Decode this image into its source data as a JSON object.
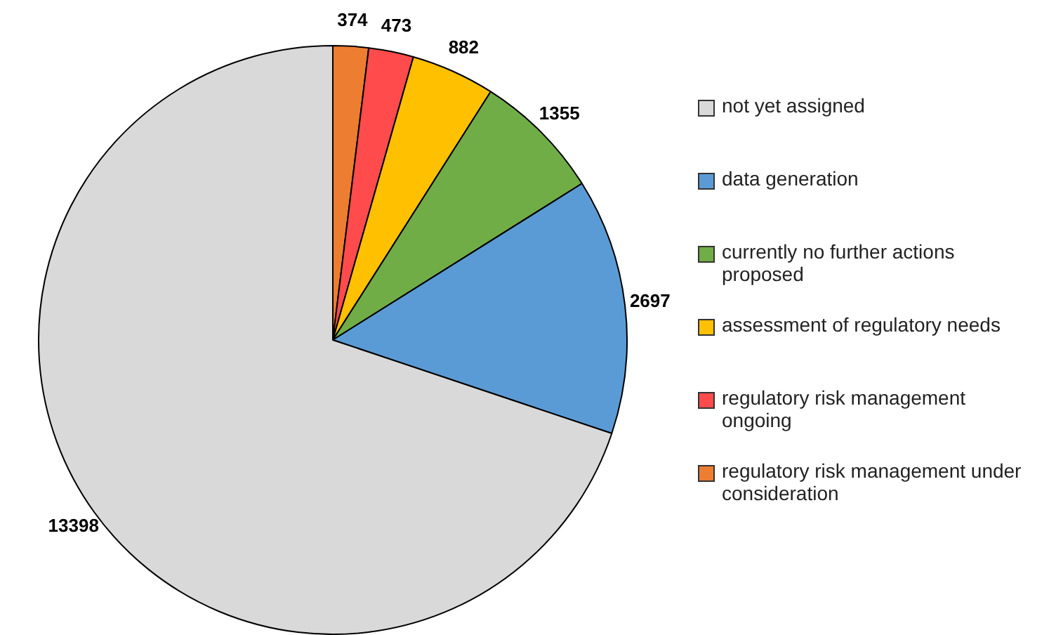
{
  "chart_data": {
    "type": "pie",
    "categories": [
      "not yet assigned",
      "data generation",
      "currently no further actions proposed",
      "assessment of regulatory needs",
      "regulatory risk management ongoing",
      "regulatory risk management under consideration"
    ],
    "values": [
      13398,
      2697,
      1355,
      882,
      473,
      374
    ],
    "colors": [
      "#d9d9d9",
      "#5b9bd5",
      "#70ad47",
      "#ffc000",
      "#ff4b4b",
      "#ed7d31"
    ],
    "data_labels": true,
    "legend": "right"
  }
}
